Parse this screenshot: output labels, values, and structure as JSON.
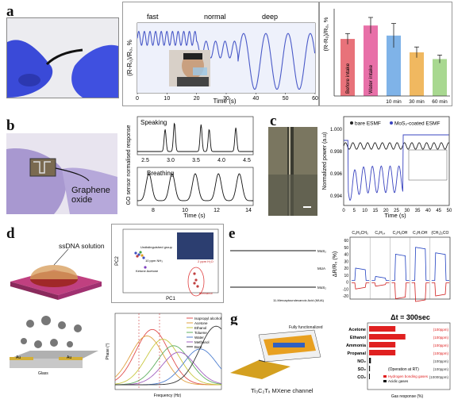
{
  "panels": {
    "a": {
      "letter": "a",
      "line_phases": [
        "fast",
        "normal",
        "deep"
      ],
      "line_ylabel": "(R-R₀)/R₀, %",
      "line_xlabel": "Time (s)",
      "line_xticks": [
        "0",
        "10",
        "20",
        "30",
        "40",
        "50",
        "60"
      ],
      "bar_ylabel": "(R-R₀)/R₀, %",
      "bar_categories": [
        "Before intake",
        "Water intake",
        "10 min",
        "30 min",
        "60 min"
      ],
      "bar_colors": [
        "#e8727a",
        "#e870a8",
        "#7fb3e8",
        "#f0b860",
        "#a8d890"
      ]
    },
    "b": {
      "letter": "b",
      "photo_label": "Graphene oxide",
      "ylabel": "GO sensor normalised response",
      "xlabel": "Time (s)",
      "top_label": "Speaking",
      "top_xticks": [
        "2.5",
        "3.0",
        "3.5",
        "4.0",
        "4.5"
      ],
      "bottom_label": "Breathing",
      "bottom_xticks": [
        "8",
        "10",
        "12",
        "14"
      ]
    },
    "c": {
      "letter": "c",
      "legend_bare": "bare ESMF",
      "legend_coated": "MoS₂-coated ESMF",
      "ylabel": "Normalized power (a.u)",
      "xlabel": "Time (s)",
      "yticks": [
        "0.994",
        "0.996",
        "0.998",
        "1.000"
      ],
      "xticks": [
        "0",
        "5",
        "10",
        "15",
        "20",
        "25",
        "30",
        "35",
        "40",
        "45",
        "50"
      ]
    },
    "d": {
      "letter": "d",
      "droplet_label": "ssDNA solution",
      "pc1": "PC1",
      "pc2": "PC2",
      "annotations": [
        "Undistinguished group",
        "10 ppm NH₃",
        "2 ppm H₂O",
        "Methanol",
        "Ketone Acetone"
      ]
    },
    "e": {
      "letter": "e",
      "ylabel": "ΔR/R₀ (%)",
      "analytes": [
        "C₆H₅CH₃",
        "C₆H₁₄",
        "C₂H₅OH",
        "C₃H₇OH",
        "(CH₃)₂CO"
      ],
      "yticks": [
        "60",
        "50",
        "40",
        "30",
        "20",
        "10",
        "0",
        "-10",
        "-20"
      ],
      "layer_labels": [
        "MoS₂",
        "MUA",
        "MoS₂"
      ],
      "molecule_label": "11-Mercaptoundecanoic Acid (MUA)"
    },
    "f": {
      "letter": "f",
      "substrate_labels": [
        "Au",
        "Au",
        "Glass"
      ],
      "ylabel": "Phase (°)",
      "xlabel": "Frequency (Hz)",
      "legend": [
        "Isopropyl alcohol",
        "Acetone",
        "Ethanol",
        "Toluene",
        "Water",
        "Methanol",
        "Bare"
      ],
      "colors": [
        "#e05050",
        "#e0a040",
        "#c8c840",
        "#60b060",
        "#5080d0",
        "#a060c0",
        "#333333"
      ]
    },
    "g": {
      "letter": "g",
      "device_top": "Fully functionalized",
      "device_label": "Ti₃C₂Tₓ MXene channel",
      "title": "Δt = 300sec",
      "categories": [
        "Acetone",
        "Ethanol",
        "Ammonia",
        "Propanal",
        "NO₂",
        "SO₂",
        "CO₂"
      ],
      "concentrations": [
        "(100ppm)",
        "(100ppm)",
        "(100ppm)",
        "(100ppm)",
        "(100ppm)",
        "(100ppm)",
        "(10000ppm)"
      ],
      "note": "(Operation at RT)",
      "legend": [
        "Hydrogen bonding gases",
        "Acidic gases"
      ],
      "xlabel": "Gas response (%)"
    }
  },
  "chart_data": [
    {
      "type": "bar",
      "panel": "a-right",
      "categories": [
        "Before intake",
        "Water intake",
        "10 min",
        "30 min",
        "60 min"
      ],
      "values": [
        0.85,
        1.05,
        0.9,
        0.65,
        0.55
      ],
      "errors": [
        0.08,
        0.12,
        0.18,
        0.08,
        0.06
      ],
      "ylim": [
        0,
        1.3
      ]
    },
    {
      "type": "bar",
      "panel": "g",
      "title": "Δt = 300sec",
      "categories": [
        "Acetone",
        "Ethanol",
        "Ammonia",
        "Propanal",
        "NO₂",
        "SO₂",
        "CO₂"
      ],
      "values": [
        -1.45,
        -2.0,
        -1.45,
        -1.45,
        -0.1,
        -0.05,
        -0.02
      ],
      "xlim": [
        -2.5,
        0
      ],
      "xlabel": "Gas response (%)"
    }
  ]
}
